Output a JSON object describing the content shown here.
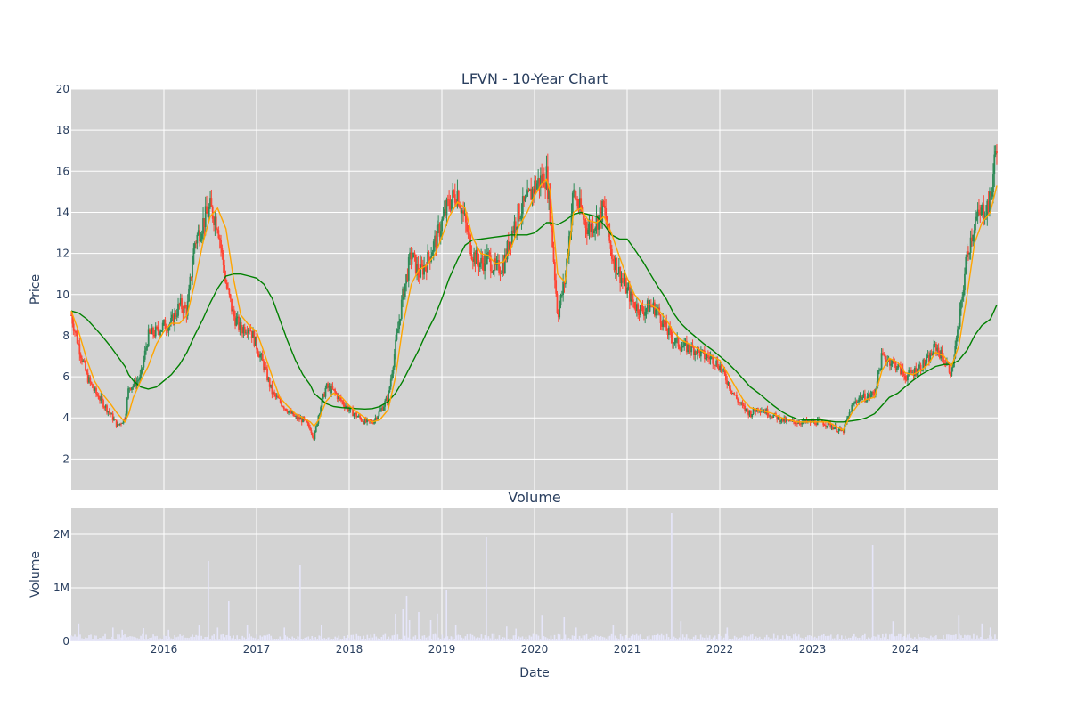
{
  "chart_data": [
    {
      "type": "candlestick",
      "title": "LFVN - 10-Year Chart",
      "ylabel": "Price",
      "ylim": [
        0.5,
        20
      ],
      "yticks": [
        2,
        4,
        6,
        8,
        10,
        12,
        14,
        16,
        18,
        20
      ],
      "xlim": [
        2015.0,
        2025.0
      ],
      "grid": true,
      "colors": {
        "background": "#d3d3d3",
        "up": "#2e8b57",
        "down": "#ff4433",
        "ma_short": "#ffa500",
        "ma_long": "#008000"
      },
      "series": [
        {
          "role": "price",
          "x": [
            2015.0,
            2015.08,
            2015.17,
            2015.25,
            2015.33,
            2015.42,
            2015.5,
            2015.58,
            2015.62,
            2015.67,
            2015.75,
            2015.83,
            2015.92,
            2016.0,
            2016.08,
            2016.17,
            2016.25,
            2016.33,
            2016.42,
            2016.5,
            2016.58,
            2016.67,
            2016.75,
            2016.83,
            2016.92,
            2017.0,
            2017.08,
            2017.17,
            2017.25,
            2017.33,
            2017.42,
            2017.5,
            2017.58,
            2017.62,
            2017.67,
            2017.75,
            2017.83,
            2017.92,
            2018.0,
            2018.08,
            2018.17,
            2018.25,
            2018.33,
            2018.42,
            2018.5,
            2018.58,
            2018.67,
            2018.75,
            2018.83,
            2018.92,
            2019.0,
            2019.08,
            2019.17,
            2019.25,
            2019.33,
            2019.42,
            2019.5,
            2019.58,
            2019.67,
            2019.75,
            2019.83,
            2019.92,
            2020.0,
            2020.08,
            2020.13,
            2020.17,
            2020.25,
            2020.33,
            2020.42,
            2020.5,
            2020.58,
            2020.67,
            2020.75,
            2020.83,
            2020.92,
            2021.0,
            2021.08,
            2021.17,
            2021.25,
            2021.33,
            2021.42,
            2021.5,
            2021.58,
            2021.67,
            2021.75,
            2021.83,
            2021.92,
            2022.0,
            2022.08,
            2022.17,
            2022.25,
            2022.33,
            2022.42,
            2022.5,
            2022.58,
            2022.67,
            2022.75,
            2022.83,
            2022.92,
            2023.0,
            2023.08,
            2023.17,
            2023.25,
            2023.33,
            2023.42,
            2023.5,
            2023.58,
            2023.67,
            2023.75,
            2023.83,
            2023.92,
            2024.0,
            2024.08,
            2024.17,
            2024.25,
            2024.33,
            2024.42,
            2024.5,
            2024.58,
            2024.67,
            2024.75,
            2024.83,
            2024.92,
            2024.99
          ],
          "values": [
            9.0,
            7.5,
            6.0,
            5.3,
            4.8,
            4.2,
            3.6,
            4.0,
            5.5,
            5.6,
            6.0,
            8.0,
            8.2,
            8.5,
            8.6,
            9.5,
            9.2,
            12.5,
            13.5,
            14.2,
            13.5,
            10.5,
            9.0,
            8.3,
            8.5,
            7.5,
            6.5,
            5.2,
            4.8,
            4.4,
            4.0,
            3.9,
            3.5,
            3.0,
            4.2,
            5.5,
            5.3,
            4.8,
            4.4,
            4.1,
            3.8,
            3.8,
            4.3,
            5.0,
            7.5,
            10.0,
            12.0,
            11.0,
            11.5,
            12.5,
            13.5,
            14.5,
            15.0,
            13.5,
            12.0,
            11.5,
            11.8,
            11.2,
            11.5,
            13.0,
            14.0,
            14.5,
            15.3,
            15.6,
            15.8,
            14.0,
            9.0,
            10.8,
            15.0,
            14.0,
            13.2,
            13.6,
            14.2,
            12.0,
            11.0,
            10.2,
            9.5,
            9.2,
            9.5,
            9.2,
            8.3,
            7.8,
            7.5,
            7.4,
            7.3,
            7.0,
            6.9,
            6.5,
            5.8,
            5.0,
            4.5,
            4.2,
            4.5,
            4.3,
            4.1,
            3.9,
            3.8,
            3.8,
            3.8,
            3.8,
            3.8,
            3.7,
            3.5,
            3.3,
            4.5,
            5.0,
            5.0,
            5.2,
            7.0,
            6.8,
            6.5,
            6.0,
            6.2,
            6.5,
            6.8,
            7.5,
            6.8,
            6.2,
            8.5,
            12.0,
            13.5,
            14.0,
            14.5,
            17.5
          ]
        },
        {
          "role": "ma_short",
          "values": [
            9.2,
            8.2,
            6.8,
            5.8,
            5.2,
            4.7,
            4.2,
            3.8,
            4.2,
            5.0,
            5.8,
            6.5,
            7.6,
            8.2,
            8.6,
            8.6,
            9.0,
            10.5,
            12.5,
            13.8,
            14.2,
            13.2,
            10.8,
            9.0,
            8.5,
            8.2,
            7.2,
            6.0,
            5.0,
            4.6,
            4.2,
            4.0,
            3.8,
            3.6,
            3.9,
            4.8,
            5.2,
            5.0,
            4.6,
            4.3,
            4.0,
            3.8,
            3.9,
            4.4,
            6.0,
            8.5,
            10.5,
            11.2,
            11.4,
            11.9,
            12.8,
            13.8,
            14.5,
            14.2,
            12.8,
            12.0,
            11.9,
            11.5,
            11.6,
            12.3,
            13.3,
            14.0,
            14.8,
            15.4,
            15.6,
            15.0,
            11.0,
            10.6,
            14.0,
            14.2,
            13.6,
            13.5,
            13.8,
            13.0,
            11.8,
            10.8,
            10.0,
            9.5,
            9.5,
            9.3,
            8.8,
            8.2,
            7.8,
            7.6,
            7.4,
            7.2,
            7.0,
            6.8,
            6.2,
            5.5,
            4.9,
            4.5,
            4.4,
            4.3,
            4.2,
            4.0,
            3.9,
            3.8,
            3.8,
            3.8,
            3.8,
            3.8,
            3.6,
            3.4,
            4.2,
            4.7,
            4.9,
            5.0,
            6.3,
            6.9,
            6.7,
            6.2,
            6.1,
            6.3,
            6.6,
            7.2,
            7.0,
            6.5,
            7.5,
            10.0,
            12.5,
            13.5,
            14.0,
            15.3
          ]
        },
        {
          "role": "ma_long",
          "values": [
            9.2,
            9.1,
            8.8,
            8.4,
            8.0,
            7.5,
            7.0,
            6.5,
            6.1,
            5.8,
            5.5,
            5.4,
            5.5,
            5.8,
            6.1,
            6.6,
            7.2,
            8.0,
            8.8,
            9.6,
            10.3,
            10.9,
            11.0,
            11.0,
            10.9,
            10.8,
            10.5,
            9.8,
            8.8,
            7.8,
            6.8,
            6.1,
            5.6,
            5.2,
            5.0,
            4.7,
            4.55,
            4.5,
            4.48,
            4.45,
            4.43,
            4.45,
            4.55,
            4.8,
            5.2,
            5.8,
            6.6,
            7.3,
            8.1,
            8.9,
            9.8,
            10.8,
            11.7,
            12.4,
            12.65,
            12.7,
            12.75,
            12.8,
            12.85,
            12.9,
            12.9,
            12.9,
            13.0,
            13.3,
            13.5,
            13.5,
            13.4,
            13.6,
            13.9,
            14.0,
            13.9,
            13.8,
            13.4,
            12.9,
            12.7,
            12.7,
            12.2,
            11.6,
            11.0,
            10.4,
            9.8,
            9.1,
            8.6,
            8.2,
            7.9,
            7.6,
            7.3,
            7.0,
            6.7,
            6.3,
            5.9,
            5.5,
            5.2,
            4.9,
            4.6,
            4.3,
            4.1,
            3.95,
            3.9,
            3.9,
            3.9,
            3.85,
            3.8,
            3.8,
            3.85,
            3.9,
            4.0,
            4.2,
            4.6,
            5.0,
            5.2,
            5.5,
            5.8,
            6.1,
            6.3,
            6.5,
            6.6,
            6.6,
            6.8,
            7.3,
            8.0,
            8.5,
            8.8,
            9.5
          ]
        }
      ]
    },
    {
      "type": "bar",
      "title": "Volume",
      "xlabel": "Date",
      "ylabel": "Volume",
      "ylim": [
        0,
        2500000
      ],
      "ytick_labels": [
        "0",
        "1M",
        "2M"
      ],
      "yticks": [
        0,
        1000000,
        2000000
      ],
      "xtick_labels": [
        "2016",
        "2017",
        "2018",
        "2019",
        "2020",
        "2021",
        "2022",
        "2023",
        "2024"
      ],
      "xticks": [
        2016,
        2017,
        2018,
        2019,
        2020,
        2021,
        2022,
        2023,
        2024
      ],
      "grid": true,
      "colors": {
        "bar": "#e6e6fa",
        "background": "#d3d3d3"
      },
      "spikes": [
        [
          2015.08,
          320000
        ],
        [
          2015.45,
          260000
        ],
        [
          2015.55,
          220000
        ],
        [
          2015.78,
          250000
        ],
        [
          2016.05,
          220000
        ],
        [
          2016.38,
          300000
        ],
        [
          2016.48,
          1500000
        ],
        [
          2016.58,
          260000
        ],
        [
          2016.7,
          750000
        ],
        [
          2016.9,
          300000
        ],
        [
          2017.3,
          260000
        ],
        [
          2017.47,
          1420000
        ],
        [
          2017.7,
          300000
        ],
        [
          2018.5,
          500000
        ],
        [
          2018.58,
          600000
        ],
        [
          2018.62,
          850000
        ],
        [
          2018.65,
          400000
        ],
        [
          2018.75,
          550000
        ],
        [
          2018.88,
          400000
        ],
        [
          2018.95,
          520000
        ],
        [
          2019.05,
          950000
        ],
        [
          2019.15,
          300000
        ],
        [
          2019.48,
          1950000
        ],
        [
          2019.7,
          280000
        ],
        [
          2019.8,
          240000
        ],
        [
          2020.08,
          480000
        ],
        [
          2020.32,
          450000
        ],
        [
          2020.45,
          260000
        ],
        [
          2020.85,
          300000
        ],
        [
          2021.48,
          2400000
        ],
        [
          2021.58,
          380000
        ],
        [
          2022.08,
          260000
        ],
        [
          2022.82,
          150000
        ],
        [
          2023.65,
          1800000
        ],
        [
          2023.87,
          380000
        ],
        [
          2024.58,
          480000
        ],
        [
          2024.83,
          320000
        ],
        [
          2024.92,
          260000
        ]
      ]
    }
  ]
}
